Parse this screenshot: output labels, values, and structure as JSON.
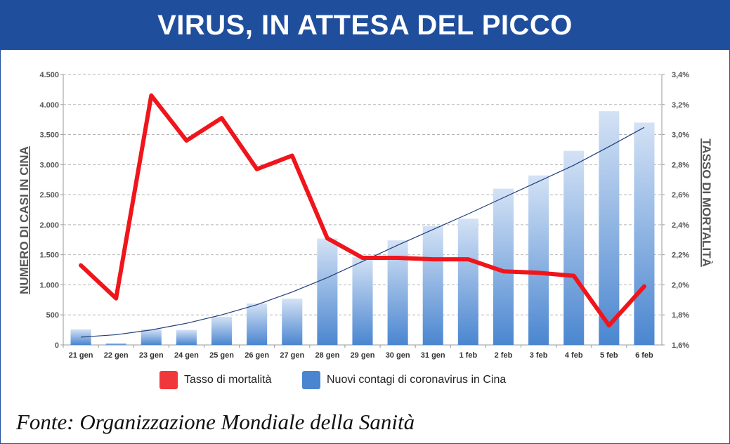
{
  "header": {
    "title": "VIRUS, IN ATTESA DEL PICCO"
  },
  "chart_data": {
    "type": "bar+line",
    "categories": [
      "21 gen",
      "22 gen",
      "23 gen",
      "24 gen",
      "25 gen",
      "26 gen",
      "27 gen",
      "28 gen",
      "29 gen",
      "30 gen",
      "31 gen",
      "1 feb",
      "2 feb",
      "3 feb",
      "4 feb",
      "5 feb",
      "6 feb"
    ],
    "bars": {
      "name": "Nuovi contagi di coronavirus in Cina",
      "axis": "left",
      "color": "#4a86d0",
      "values": [
        260,
        30,
        260,
        250,
        470,
        690,
        770,
        1770,
        1460,
        1740,
        1980,
        2100,
        2600,
        2820,
        3230,
        3890,
        3700
      ]
    },
    "line": {
      "name": "Tasso di mortalità",
      "axis": "right",
      "color": "#f0151b",
      "values": [
        2.13,
        1.91,
        3.26,
        2.96,
        3.11,
        2.77,
        2.86,
        2.31,
        2.18,
        2.18,
        2.17,
        2.17,
        2.09,
        2.08,
        2.06,
        1.73,
        1.99
      ]
    },
    "trend": {
      "color": "#1f3e7a",
      "values": [
        130,
        170,
        250,
        360,
        500,
        670,
        880,
        1120,
        1390,
        1660,
        1920,
        2180,
        2450,
        2720,
        2990,
        3300,
        3620
      ]
    },
    "y_left": {
      "label": "NUMERO DI CASI IN CINA",
      "min": 0,
      "max": 4500,
      "ticks": [
        0,
        500,
        1000,
        1500,
        2000,
        2500,
        3000,
        3500,
        4000,
        4500
      ],
      "tick_labels": [
        "0",
        "500",
        "1.000",
        "1.500",
        "2.000",
        "2.500",
        "3.000",
        "3.500",
        "4.000",
        "4.500"
      ]
    },
    "y_right": {
      "label": "TASSO DI MORTALITÀ",
      "min": 1.6,
      "max": 3.4,
      "ticks": [
        1.6,
        1.8,
        2.0,
        2.2,
        2.4,
        2.6,
        2.8,
        3.0,
        3.2,
        3.4
      ],
      "tick_labels": [
        "1,6%",
        "1,8%",
        "2,0%",
        "2,2%",
        "2,4%",
        "2,6%",
        "2,8%",
        "3,0%",
        "3,2%",
        "3,4%"
      ]
    },
    "grid": true,
    "legend_position": "bottom"
  },
  "legend": {
    "line_label": "Tasso di mortalità",
    "bar_label": "Nuovi contagi di coronavirus in Cina"
  },
  "footer": {
    "source": "Fonte: Organizzazione Mondiale della Sanità"
  }
}
